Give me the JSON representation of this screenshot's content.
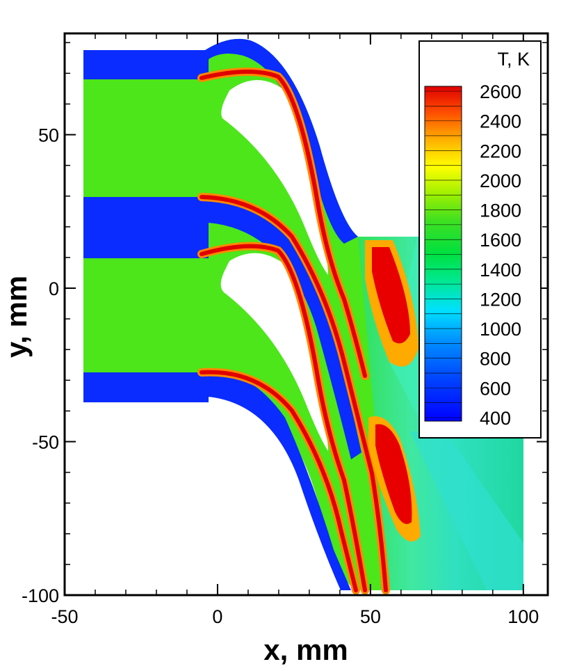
{
  "chart_data": {
    "type": "heatmap",
    "title": "",
    "xlabel": "x, mm",
    "ylabel": "y, mm",
    "xlim": [
      -50,
      108
    ],
    "ylim": [
      -100,
      83
    ],
    "x_ticks": [
      -50,
      0,
      50,
      100
    ],
    "y_ticks": [
      50,
      0,
      -50,
      -100
    ],
    "x_tick_labels": [
      "-50",
      "0",
      "50",
      "100"
    ],
    "y_tick_labels": [
      "50",
      "0",
      "-50",
      "-100"
    ],
    "colorbar": {
      "title": "T, K",
      "min": 400,
      "max": 2600,
      "label_values": [
        2600,
        2400,
        2200,
        2000,
        1800,
        1600,
        1400,
        1200,
        1000,
        800,
        600,
        400
      ],
      "labels": [
        "2600",
        "2400",
        "2200",
        "2000",
        "1800",
        "1600",
        "1400",
        "1200",
        "1000",
        "800",
        "600",
        "400"
      ],
      "placement": "top-right"
    },
    "field": {
      "background_level": 1750,
      "cold_stream_level": 450,
      "flame_level": 2600,
      "outlet_level": 1300,
      "hot_zone_level": 2550
    },
    "grid": false
  }
}
